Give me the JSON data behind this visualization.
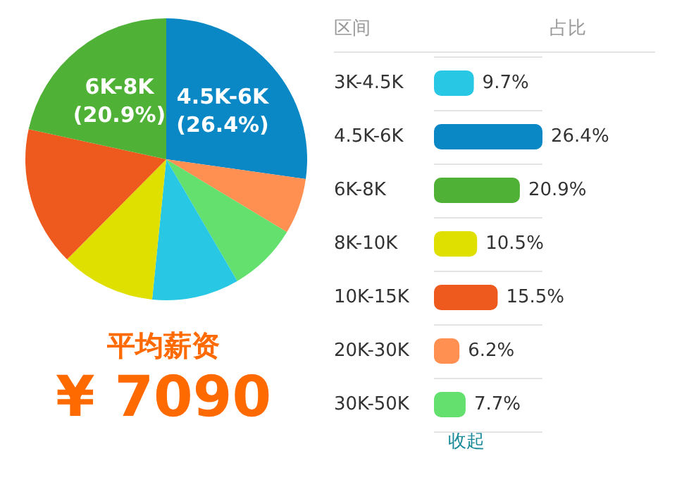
{
  "chart_data": [
    {
      "type": "pie",
      "title": "平均薪资",
      "annotations": [
        "¥ 7090"
      ],
      "categories": [
        "4.5K-6K",
        null,
        null,
        null,
        null,
        null,
        "6K-8K"
      ],
      "values": [
        26.4,
        6.2,
        7.7,
        9.7,
        10.5,
        15.5,
        20.9
      ],
      "colors": [
        "#0a88c6",
        "#ff9052",
        "#63e06e",
        "#28c8e4",
        "#dfe000",
        "#ee5a1e",
        "#4fb136"
      ],
      "value_labels": [
        "(26.4%)",
        null,
        null,
        null,
        null,
        null,
        "(20.9%)"
      ]
    },
    {
      "type": "bar",
      "orientation": "horizontal",
      "ylabel": "区间",
      "xlabel": "占比",
      "grid": "y",
      "annotations": [
        "收起"
      ],
      "categories": [
        "3K-4.5K",
        "4.5K-6K",
        "6K-8K",
        "8K-10K",
        "10K-15K",
        "20K-30K",
        "30K-50K"
      ],
      "values": [
        9.7,
        26.4,
        20.9,
        10.5,
        15.5,
        6.2,
        7.7
      ],
      "colors": [
        "#28c8e4",
        "#0a88c6",
        "#4fb136",
        "#dfe000",
        "#ee5a1e",
        "#ff9052",
        "#63e06e"
      ],
      "value_labels": [
        "9.7%",
        "26.4%",
        "20.9%",
        "10.5%",
        "15.5%",
        "6.2%",
        "7.7%"
      ]
    }
  ]
}
